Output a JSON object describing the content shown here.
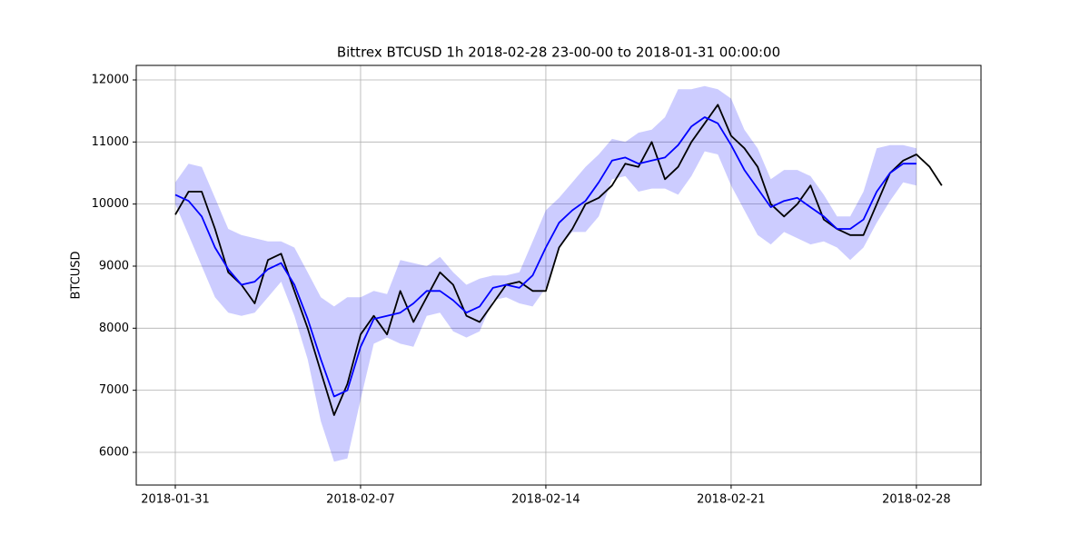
{
  "chart_data": {
    "type": "line",
    "title": "Bittrex BTCUSD 1h 2018-02-28 23-00-00 to 2018-01-31 00:00:00",
    "y_label": "BTCUSD",
    "x": [
      "2018-01-31 00:00",
      "2018-01-31 12:00",
      "2018-02-01 00:00",
      "2018-02-01 12:00",
      "2018-02-02 00:00",
      "2018-02-02 12:00",
      "2018-02-03 00:00",
      "2018-02-03 12:00",
      "2018-02-04 00:00",
      "2018-02-04 12:00",
      "2018-02-05 00:00",
      "2018-02-05 12:00",
      "2018-02-06 00:00",
      "2018-02-06 12:00",
      "2018-02-07 00:00",
      "2018-02-07 12:00",
      "2018-02-08 00:00",
      "2018-02-08 12:00",
      "2018-02-09 00:00",
      "2018-02-09 12:00",
      "2018-02-10 00:00",
      "2018-02-10 12:00",
      "2018-02-11 00:00",
      "2018-02-11 12:00",
      "2018-02-12 00:00",
      "2018-02-12 12:00",
      "2018-02-13 00:00",
      "2018-02-13 12:00",
      "2018-02-14 00:00",
      "2018-02-14 12:00",
      "2018-02-15 00:00",
      "2018-02-15 12:00",
      "2018-02-16 00:00",
      "2018-02-16 12:00",
      "2018-02-17 00:00",
      "2018-02-17 12:00",
      "2018-02-18 00:00",
      "2018-02-18 12:00",
      "2018-02-19 00:00",
      "2018-02-19 12:00",
      "2018-02-20 00:00",
      "2018-02-20 12:00",
      "2018-02-21 00:00",
      "2018-02-21 12:00",
      "2018-02-22 00:00",
      "2018-02-22 12:00",
      "2018-02-23 00:00",
      "2018-02-23 12:00",
      "2018-02-24 00:00",
      "2018-02-24 12:00",
      "2018-02-25 00:00",
      "2018-02-25 12:00",
      "2018-02-26 00:00",
      "2018-02-26 12:00",
      "2018-02-27 00:00",
      "2018-02-27 12:00",
      "2018-02-28 00:00",
      "2018-02-28 12:00",
      "2018-02-28 23:00"
    ],
    "series": [
      {
        "color": "#000000",
        "values": [
          9830,
          10200,
          10200,
          9600,
          8900,
          8700,
          8400,
          9100,
          9200,
          8600,
          8000,
          7300,
          6600,
          7100,
          7900,
          8200,
          7900,
          8600,
          8100,
          8500,
          8900,
          8700,
          8200,
          8100,
          8400,
          8700,
          8750,
          8600,
          8600,
          9300,
          9600,
          10000,
          10100,
          10300,
          10650,
          10600,
          11000,
          10400,
          10600,
          11000,
          11300,
          11600,
          11100,
          10900,
          10600,
          10000,
          9800,
          10000,
          10300,
          9750,
          9600,
          9500,
          9500,
          10000,
          10500,
          10700,
          10800,
          10600,
          10300
        ]
      },
      {
        "color": "#0000ff",
        "values": [
          10150,
          10050,
          9800,
          9300,
          8950,
          8700,
          8750,
          8950,
          9050,
          8700,
          8150,
          7500,
          6900,
          7000,
          7700,
          8150,
          8200,
          8250,
          8400,
          8600,
          8600,
          8450,
          8250,
          8350,
          8650,
          8700,
          8650,
          8850,
          9300,
          9700,
          9900,
          10050,
          10350,
          10700,
          10750,
          10650,
          10700,
          10750,
          10950,
          11250,
          11400,
          11300,
          10950,
          10550,
          10250,
          9950,
          10050,
          10100,
          9950,
          9800,
          9600,
          9600,
          9750,
          10200,
          10500,
          10650,
          10650,
          null,
          null
        ]
      }
    ],
    "band": {
      "color": "#0000ff",
      "opacity": 0.2,
      "upper": [
        10350,
        10650,
        10600,
        10100,
        9600,
        9500,
        9450,
        9400,
        9400,
        9300,
        8900,
        8500,
        8350,
        8500,
        8500,
        8600,
        8550,
        9100,
        9050,
        9000,
        9150,
        8900,
        8700,
        8800,
        8850,
        8850,
        8900,
        9400,
        9900,
        10100,
        10350,
        10600,
        10800,
        11050,
        11000,
        11150,
        11200,
        11400,
        11850,
        11850,
        11900,
        11850,
        11700,
        11200,
        10900,
        10400,
        10550,
        10550,
        10450,
        10150,
        9800,
        9800,
        10200,
        10900,
        10950,
        10950,
        10900,
        null,
        null
      ],
      "lower": [
        10000,
        9500,
        9000,
        8500,
        8250,
        8200,
        8250,
        8500,
        8750,
        8200,
        7500,
        6500,
        5850,
        5900,
        6850,
        7750,
        7850,
        7750,
        7700,
        8200,
        8250,
        7950,
        7850,
        7950,
        8450,
        8500,
        8400,
        8350,
        8650,
        9300,
        9550,
        9550,
        9800,
        10400,
        10450,
        10200,
        10250,
        10250,
        10150,
        10450,
        10850,
        10800,
        10300,
        9900,
        9500,
        9350,
        9550,
        9450,
        9350,
        9400,
        9300,
        9100,
        9300,
        9700,
        10050,
        10350,
        10300,
        null,
        null
      ]
    },
    "xlim": [
      "2018-01-29 12:36",
      "2018-03-02 10:34"
    ],
    "xticks": [
      "2018-01-31",
      "2018-02-07",
      "2018-02-14",
      "2018-02-21",
      "2018-02-28"
    ],
    "ylim": [
      5473,
      12234
    ],
    "yticks": [
      6000,
      7000,
      8000,
      9000,
      10000,
      11000,
      12000
    ],
    "grid": true
  }
}
